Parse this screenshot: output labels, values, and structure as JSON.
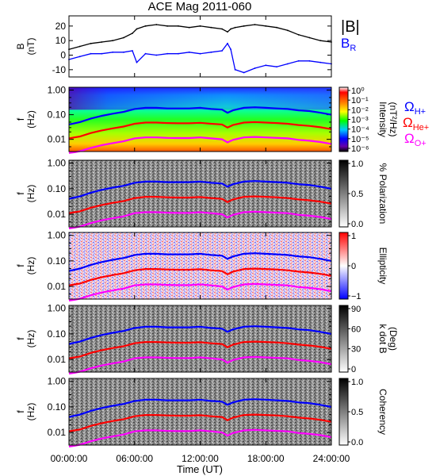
{
  "title": "ACE Mag 2011-060",
  "xaxis": {
    "label": "Time (UT)",
    "ticks": [
      "00:00:00",
      "06:00:00",
      "12:00:00",
      "18:00:00",
      "24:00:00"
    ],
    "range_hours": [
      0,
      24
    ]
  },
  "colors": {
    "B": "#000000",
    "BR": "#0000ff",
    "OmegaH": "#0000ff",
    "OmegaHe": "#ff0000",
    "OmegaO": "#ff00ff",
    "spectrogram_bg": "#a0a0a0"
  },
  "legend_top": {
    "b_total": "|B|",
    "b_r_main": "B",
    "b_r_sub": "R"
  },
  "legend_gyro": [
    {
      "main": "Ω",
      "sub": "H+",
      "color": "#0000ff"
    },
    {
      "main": "Ω",
      "sub": "He+",
      "color": "#ff0000"
    },
    {
      "main": "Ω",
      "sub": "O+",
      "color": "#ff00ff"
    }
  ],
  "chart_data": [
    {
      "type": "line",
      "panel": "magnetic-field",
      "ylabel_main": "B",
      "ylabel_unit": "(nT)",
      "ylim": [
        -15,
        27
      ],
      "yticks": [
        "20",
        "10",
        "0",
        "-10"
      ],
      "x": [
        0,
        1,
        2,
        3,
        4,
        5,
        5.8,
        6.2,
        7,
        8,
        9,
        10,
        11,
        12,
        13,
        14,
        14.5,
        14.8,
        15.2,
        16,
        17,
        18,
        19,
        20,
        21,
        22,
        23,
        24
      ],
      "series": [
        {
          "name": "|B|",
          "values": [
            4,
            6,
            8,
            9,
            10,
            12,
            15,
            18,
            20,
            21,
            20,
            20,
            19,
            20,
            19,
            18,
            16,
            18,
            19,
            20,
            21,
            20,
            19,
            17,
            14,
            12,
            10,
            9
          ]
        },
        {
          "name": "B_R",
          "values": [
            -3,
            -1,
            1,
            1,
            2,
            2,
            3,
            -5,
            1,
            0,
            1,
            1,
            2,
            1,
            2,
            3,
            8,
            4,
            -10,
            -12,
            -9,
            -7,
            -8,
            -6,
            -4,
            -4,
            -5,
            -6
          ]
        }
      ]
    },
    {
      "type": "heatmap",
      "panel": "intensity",
      "ylabel_main": "f",
      "ylabel_unit": "(Hz)",
      "yticks": [
        "1.00",
        "0.10",
        "0.01"
      ],
      "colorbar_label": "Intensity",
      "colorbar_unit": "(nT²/Hz)",
      "colorbar_ticks": [
        "10⁰",
        "10⁻¹",
        "10⁻²",
        "10⁻³",
        "10⁻⁴",
        "10⁻⁵",
        "10⁻⁶"
      ]
    },
    {
      "type": "heatmap",
      "panel": "polarization",
      "ylabel_main": "f",
      "ylabel_unit": "(Hz)",
      "yticks": [
        "1.00",
        "0.10",
        "0.01"
      ],
      "colorbar_label": "% Polarization",
      "colorbar_ticks": [
        "1.0",
        "0.5",
        "0.0"
      ]
    },
    {
      "type": "heatmap",
      "panel": "ellipticity",
      "ylabel_main": "f",
      "ylabel_unit": "(Hz)",
      "yticks": [
        "1.00",
        "0.10",
        "0.01"
      ],
      "colorbar_label": "Ellipticity",
      "colorbar_ticks": [
        "1",
        "0",
        "−1"
      ]
    },
    {
      "type": "heatmap",
      "panel": "k-dot-b",
      "ylabel_main": "f",
      "ylabel_unit": "(Hz)",
      "yticks": [
        "1.00",
        "0.10",
        "0.01"
      ],
      "colorbar_label": "k dot B",
      "colorbar_unit": "(Deg)",
      "colorbar_ticks": [
        "90",
        "60",
        "30",
        "0"
      ]
    },
    {
      "type": "heatmap",
      "panel": "coherency",
      "ylabel_main": "f",
      "ylabel_unit": "(Hz)",
      "yticks": [
        "1.00",
        "0.10",
        "0.01"
      ],
      "colorbar_label": "Coherency",
      "colorbar_ticks": [
        "1.0",
        "0.5",
        "0.0"
      ]
    }
  ],
  "gyro_lines": {
    "x": [
      0,
      0.5,
      1,
      2,
      3,
      4,
      5,
      6,
      7,
      8,
      9,
      10,
      11,
      12,
      13,
      14,
      14.5,
      15,
      16,
      17,
      18,
      19,
      20,
      21,
      22,
      23,
      24
    ],
    "OmegaH": [
      0.04,
      0.045,
      0.05,
      0.07,
      0.09,
      0.11,
      0.13,
      0.17,
      0.19,
      0.19,
      0.18,
      0.18,
      0.18,
      0.19,
      0.17,
      0.16,
      0.12,
      0.15,
      0.19,
      0.2,
      0.19,
      0.18,
      0.17,
      0.15,
      0.14,
      0.12,
      0.1
    ],
    "OmegaHe": [
      0.011,
      0.012,
      0.013,
      0.018,
      0.023,
      0.028,
      0.033,
      0.043,
      0.048,
      0.048,
      0.046,
      0.045,
      0.045,
      0.047,
      0.043,
      0.04,
      0.03,
      0.038,
      0.048,
      0.05,
      0.048,
      0.046,
      0.043,
      0.038,
      0.035,
      0.031,
      0.026
    ],
    "OmegaO": [
      0.0028,
      0.003,
      0.0033,
      0.0045,
      0.0058,
      0.007,
      0.0083,
      0.011,
      0.012,
      0.012,
      0.0115,
      0.0113,
      0.0113,
      0.012,
      0.011,
      0.01,
      0.0075,
      0.0095,
      0.012,
      0.0125,
      0.012,
      0.0115,
      0.011,
      0.0095,
      0.0088,
      0.0078,
      0.0065
    ]
  }
}
